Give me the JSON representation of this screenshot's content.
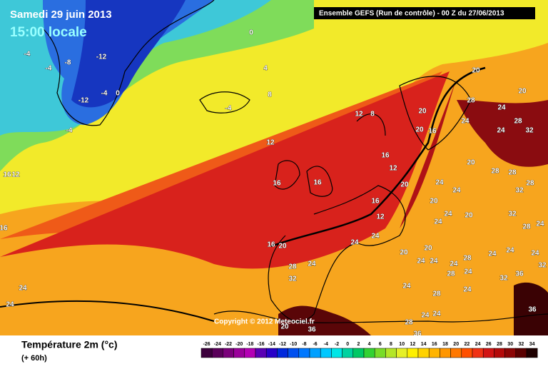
{
  "header": {
    "date": "Samedi 29 juin 2013",
    "time": "15:00 locale",
    "run": "Ensemble GEFS (Run de contrôle)  -  00 Z du 27/06/2013"
  },
  "map": {
    "labels": [
      "-12",
      "-8",
      "-4",
      "-4",
      "-12",
      "-4",
      "0",
      "-4",
      "0",
      "4",
      "8",
      "-4",
      "12",
      "16",
      "12",
      "16",
      "16",
      "16",
      "12",
      "8",
      "16",
      "12",
      "16",
      "12",
      "20",
      "20",
      "20",
      "16",
      "20",
      "20",
      "28",
      "24",
      "24",
      "24",
      "28",
      "32",
      "20",
      "28",
      "28",
      "28",
      "32",
      "24",
      "24",
      "20",
      "24",
      "20",
      "24",
      "32",
      "28",
      "24",
      "16",
      "20",
      "24",
      "24",
      "20",
      "20",
      "24",
      "24",
      "24",
      "28",
      "24",
      "24",
      "24",
      "28",
      "24",
      "32",
      "28",
      "24",
      "32",
      "24",
      "24",
      "28",
      "24",
      "24",
      "24",
      "24",
      "36",
      "32",
      "20",
      "36",
      "28",
      "36",
      "36"
    ],
    "copyright": "Copyright © 2012 Meteociel.fr"
  },
  "footer": {
    "title": "Température 2m (°c)",
    "lead": "(+ 60h)",
    "scale": [
      "-26",
      "-24",
      "-22",
      "-20",
      "-18",
      "-16",
      "-14",
      "-12",
      "-10",
      "-8",
      "-6",
      "-4",
      "-2",
      "0",
      "2",
      "4",
      "6",
      "8",
      "10",
      "12",
      "14",
      "16",
      "18",
      "20",
      "22",
      "24",
      "26",
      "28",
      "30",
      "32",
      "34"
    ]
  }
}
